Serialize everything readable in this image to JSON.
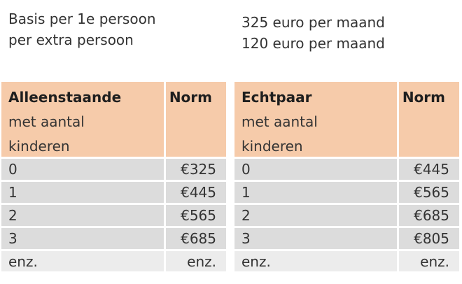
{
  "intro": {
    "left": [
      "Basis per 1e persoon",
      "per extra persoon"
    ],
    "right": [
      "325 euro per maand",
      "120 euro per maand"
    ]
  },
  "tables": [
    {
      "header_title": "Alleenstaande",
      "header_sub": [
        "met aantal",
        "kinderen"
      ],
      "header_norm": "Norm",
      "rows": [
        {
          "count": "0",
          "norm": "€325"
        },
        {
          "count": "1",
          "norm": "€445"
        },
        {
          "count": "2",
          "norm": "€565"
        },
        {
          "count": "3",
          "norm": "€685"
        },
        {
          "count": "enz.",
          "norm": "enz."
        }
      ]
    },
    {
      "header_title": "Echtpaar",
      "header_sub": [
        "met aantal",
        "kinderen"
      ],
      "header_norm": "Norm",
      "rows": [
        {
          "count": "0",
          "norm": "€445"
        },
        {
          "count": "1",
          "norm": "€565"
        },
        {
          "count": "2",
          "norm": "€685"
        },
        {
          "count": "3",
          "norm": "€805"
        },
        {
          "count": "enz.",
          "norm": "enz."
        }
      ]
    }
  ]
}
